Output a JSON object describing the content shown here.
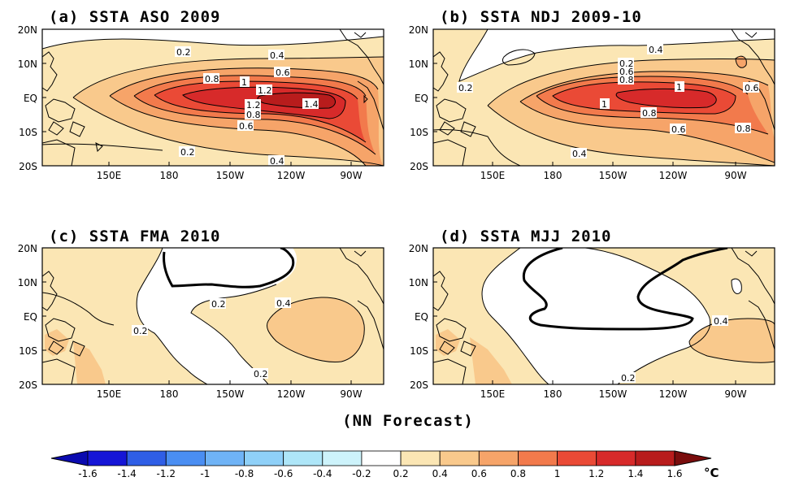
{
  "panels": [
    {
      "title": "(a) SSTA ASO 2009",
      "y_ticks": [
        "20N",
        "10N",
        "EQ",
        "10S",
        "20S"
      ],
      "x_ticks": [
        "150E",
        "180",
        "150W",
        "120W",
        "90W"
      ],
      "contour_labels": [
        "0.2",
        "0.4",
        "0.6",
        "0.8",
        "1",
        "1.2",
        "1.2",
        "0.8",
        "0.6",
        "0.2",
        "0.4",
        "1.4"
      ]
    },
    {
      "title": "(b) SSTA NDJ 2009-10",
      "y_ticks": [
        "20N",
        "10N",
        "EQ",
        "10S",
        "20S"
      ],
      "x_ticks": [
        "150E",
        "180",
        "150W",
        "120W",
        "90W"
      ],
      "contour_labels": [
        "0.4",
        "0.2",
        "0.6",
        "0.8",
        "0.2",
        "1",
        "1",
        "0.6",
        "0.8",
        "0.6",
        "0.8",
        "0.4"
      ]
    },
    {
      "title": "(c) SSTA FMA 2010",
      "y_ticks": [
        "20N",
        "10N",
        "EQ",
        "10S",
        "20S"
      ],
      "x_ticks": [
        "150E",
        "180",
        "150W",
        "120W",
        "90W"
      ],
      "contour_labels": [
        "0.2",
        "0.4",
        "0.2",
        "0.2"
      ]
    },
    {
      "title": "(d) SSTA MJJ 2010",
      "y_ticks": [
        "20N",
        "10N",
        "EQ",
        "10S",
        "20S"
      ],
      "x_ticks": [
        "150E",
        "180",
        "150W",
        "120W",
        "90W"
      ],
      "contour_labels": [
        "0.4",
        "0.2"
      ]
    }
  ],
  "footer": "(NN Forecast)",
  "colorbar": {
    "labels": [
      "-1.6",
      "-1.4",
      "-1.2",
      "-1",
      "-0.8",
      "-0.6",
      "-0.4",
      "-0.2",
      "0.2",
      "0.4",
      "0.6",
      "0.8",
      "1",
      "1.2",
      "1.4",
      "1.6"
    ],
    "unit": "°C",
    "colors": [
      "#1515d6",
      "#2f5ee6",
      "#4a8ef2",
      "#6fb3f6",
      "#8fd0f8",
      "#aee6f8",
      "#cdf3fb",
      "#ffffff",
      "#fbe6b4",
      "#f9c98c",
      "#f6a469",
      "#f27a4c",
      "#ea4a36",
      "#d72a2a",
      "#b81c1c"
    ],
    "left_arrow_color": "#0a0ab0",
    "right_arrow_color": "#7a0d0d"
  },
  "shading": {
    "w02": "#fbe6b4",
    "w04": "#f9c98c",
    "w06": "#f6a469",
    "w08": "#f27a4c",
    "w10": "#ea4a36",
    "w12": "#d72a2a",
    "w14": "#b81c1c"
  }
}
